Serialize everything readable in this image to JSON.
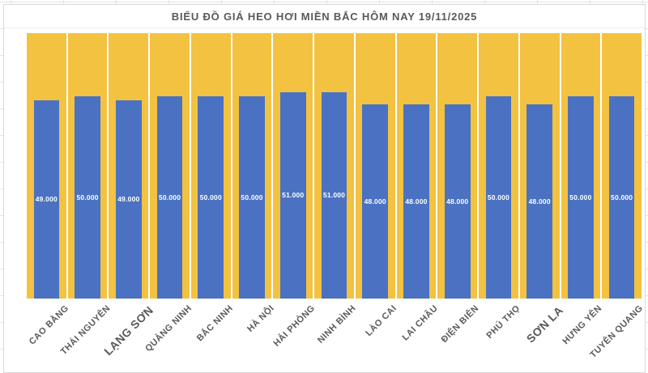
{
  "chart_data": {
    "type": "bar",
    "title": "BIỂU ĐỒ GIÁ HEO HƠI MIỀN BẮC HÔM NAY 19/11/2025",
    "categories": [
      "CAO BẰNG",
      "THÁI NGUYÊN",
      "LẠNG SƠN",
      "QUẢNG NINH",
      "BẮC NINH",
      "HÀ NỘI",
      "HẢI PHÒNG",
      "NINH BÌNH",
      "LÀO CAI",
      "LAI CHÂU",
      "ĐIỆN BIÊN",
      "PHÚ THỌ",
      "SƠN LA",
      "HƯNG YÊN",
      "TUYÊN QUANG"
    ],
    "values": [
      49000,
      50000,
      49000,
      50000,
      50000,
      50000,
      51000,
      51000,
      48000,
      48000,
      48000,
      50000,
      48000,
      50000,
      50000
    ],
    "value_labels": [
      "49.000",
      "50.000",
      "49.000",
      "50.000",
      "50.000",
      "50.000",
      "51.000",
      "51.000",
      "48.000",
      "48.000",
      "48.000",
      "50.000",
      "48.000",
      "50.000",
      "50.000"
    ],
    "ylim": [
      0,
      65500
    ],
    "xlabel": "",
    "ylabel": "",
    "grid": false,
    "legend": false,
    "bar_label_position": "center",
    "category_label_rotation_deg": -45,
    "emphasized_categories": [
      "LẠNG SƠN",
      "SƠN LA"
    ],
    "colors": {
      "bar": "#4B72C2",
      "plot_background": "#F2C240",
      "column_separator": "#FFFFFF",
      "value_label": "#FFFFFF",
      "text": "#595959",
      "chart_border": "#D9D9D9",
      "chart_background": "#FFFFFF"
    }
  }
}
